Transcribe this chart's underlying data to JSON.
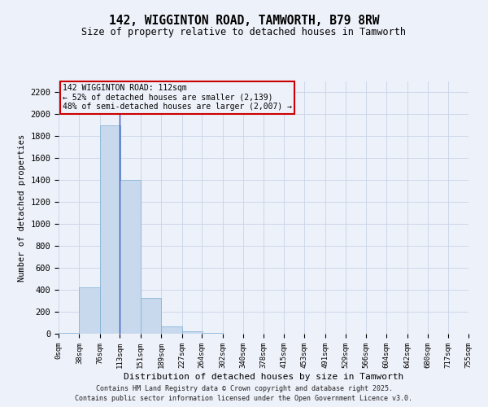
{
  "title": "142, WIGGINTON ROAD, TAMWORTH, B79 8RW",
  "subtitle": "Size of property relative to detached houses in Tamworth",
  "xlabel": "Distribution of detached houses by size in Tamworth",
  "ylabel": "Number of detached properties",
  "bar_color": "#c8d9ee",
  "bar_edge_color": "#7aaed4",
  "bins_labels": [
    "0sqm",
    "38sqm",
    "76sqm",
    "113sqm",
    "151sqm",
    "189sqm",
    "227sqm",
    "264sqm",
    "302sqm",
    "340sqm",
    "378sqm",
    "415sqm",
    "453sqm",
    "491sqm",
    "529sqm",
    "566sqm",
    "604sqm",
    "642sqm",
    "680sqm",
    "717sqm",
    "755sqm"
  ],
  "bin_edges": [
    0,
    38,
    76,
    113,
    151,
    189,
    227,
    264,
    302,
    340,
    378,
    415,
    453,
    491,
    529,
    566,
    604,
    642,
    680,
    717,
    755
  ],
  "values": [
    5,
    420,
    1900,
    1400,
    330,
    70,
    20,
    5,
    2,
    1,
    0,
    0,
    0,
    0,
    0,
    0,
    0,
    0,
    0,
    0
  ],
  "property_size": 112,
  "annotation_line1": "142 WIGGINTON ROAD: 112sqm",
  "annotation_line2": "← 52% of detached houses are smaller (2,139)",
  "annotation_line3": "48% of semi-detached houses are larger (2,007) →",
  "annotation_box_color": "#cc0000",
  "vline_color": "#3355bb",
  "ylim": [
    0,
    2300
  ],
  "yticks": [
    0,
    200,
    400,
    600,
    800,
    1000,
    1200,
    1400,
    1600,
    1800,
    2000,
    2200
  ],
  "grid_color": "#c8d4e8",
  "background_color": "#edf1f9",
  "footer1": "Contains HM Land Registry data © Crown copyright and database right 2025.",
  "footer2": "Contains public sector information licensed under the Open Government Licence v3.0."
}
